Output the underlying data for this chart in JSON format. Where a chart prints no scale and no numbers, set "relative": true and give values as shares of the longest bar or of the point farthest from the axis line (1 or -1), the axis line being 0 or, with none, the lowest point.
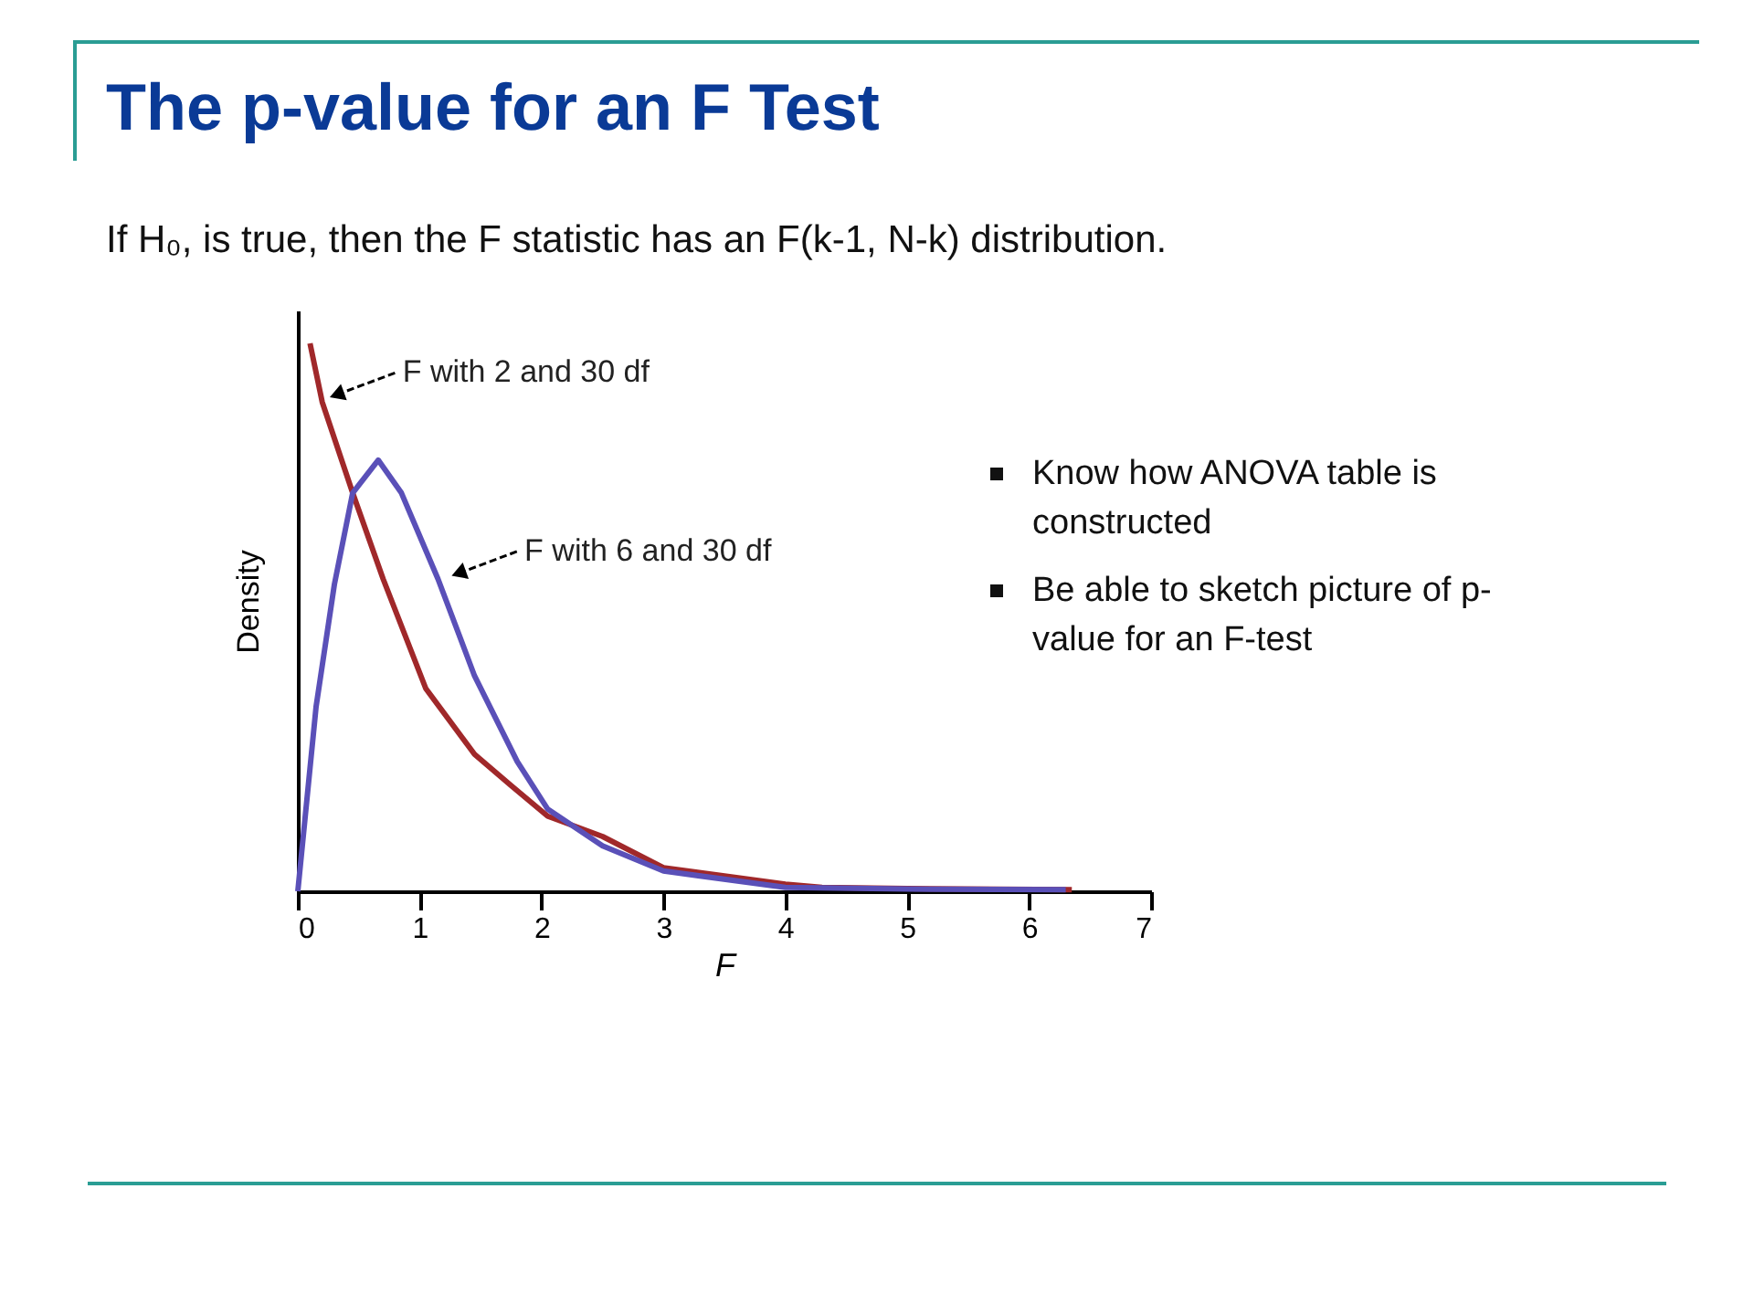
{
  "chart_data": {
    "type": "line",
    "title": "The p-value for an F Test",
    "subtitle": "If H₀, is true, then the F statistic has an F(k-1, N-k) distribution.",
    "xlabel": "F",
    "ylabel": "Density",
    "relative": true,
    "xlim": [
      0,
      7
    ],
    "xticks": [
      0,
      1,
      2,
      3,
      4,
      5,
      6,
      7
    ],
    "grid": false,
    "marker": "none",
    "line_style": "solid",
    "series": [
      {
        "color": "#a0282a",
        "x": [
          0.1,
          0.2,
          0.45,
          0.7,
          1.05,
          1.45,
          1.75,
          2.05,
          2.5,
          3.0,
          4.0,
          4.3,
          5.0,
          6.35
        ],
        "values": [
          1.0,
          0.893,
          0.727,
          0.57,
          0.37,
          0.25,
          0.193,
          0.137,
          0.1,
          0.043,
          0.013,
          0.007,
          0.005,
          0.003
        ]
      },
      {
        "color": "#5a50b8",
        "x": [
          0.0,
          0.15,
          0.3,
          0.45,
          0.66,
          0.85,
          1.15,
          1.45,
          1.8,
          2.05,
          2.5,
          3.0,
          4.0,
          5.0,
          6.3
        ],
        "values": [
          0.0,
          0.337,
          0.56,
          0.727,
          0.787,
          0.727,
          0.57,
          0.393,
          0.237,
          0.15,
          0.083,
          0.037,
          0.007,
          0.004,
          0.003
        ]
      }
    ],
    "annotations": [
      {
        "text": "F with 2 and 30 df",
        "x": 0.2,
        "y": 0.893
      },
      {
        "text": "F with 6 and 30 df",
        "x": 1.2,
        "y": 0.567
      },
      "Know how ANOVA table is constructed",
      "Be able to sketch picture of p-value for an F-test"
    ]
  }
}
